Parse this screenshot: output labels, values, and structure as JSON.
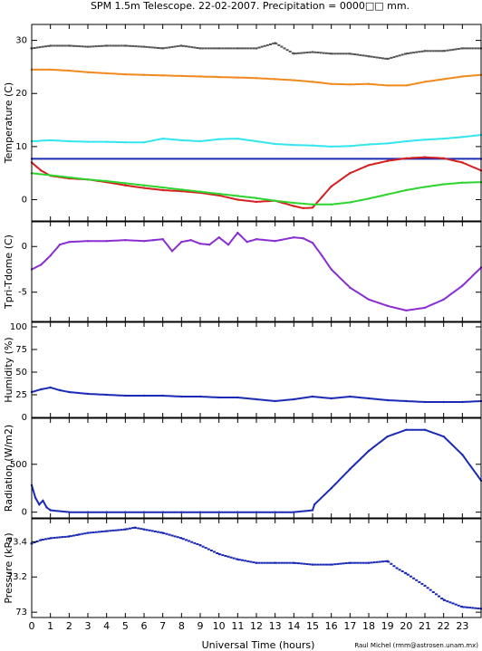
{
  "title": "SPM 1.5m Telescope. 22-02-2007. Precipitation = 0000□□ mm.",
  "credit": "Raul Michel (rmm@astrosen.unam.mx)",
  "chart_data": [
    {
      "type": "line",
      "ylabel": "Temperature (C)",
      "ylim": [
        -4,
        33
      ],
      "yticks": [
        0,
        10,
        20,
        30
      ],
      "series": [
        {
          "color": "#555555",
          "style": "dots",
          "x": [
            0,
            1,
            2,
            3,
            4,
            5,
            6,
            7,
            8,
            9,
            10,
            11,
            12,
            13,
            14,
            15,
            16,
            17,
            18,
            19,
            20,
            21,
            22,
            23,
            24
          ],
          "values": [
            28.5,
            29,
            29,
            28.8,
            29,
            29,
            28.8,
            28.5,
            29,
            28.5,
            28.5,
            28.5,
            28.5,
            29.5,
            27.5,
            27.8,
            27.5,
            27.5,
            27,
            26.5,
            27.5,
            28,
            28,
            28.5,
            28.5
          ]
        },
        {
          "color": "#f08a1e",
          "style": "line",
          "x": [
            0,
            1,
            2,
            3,
            4,
            5,
            6,
            7,
            8,
            9,
            10,
            11,
            12,
            13,
            14,
            15,
            16,
            17,
            18,
            19,
            20,
            21,
            22,
            23,
            24
          ],
          "values": [
            24.5,
            24.5,
            24.3,
            24,
            23.8,
            23.6,
            23.5,
            23.4,
            23.3,
            23.2,
            23.1,
            23,
            22.9,
            22.7,
            22.5,
            22.2,
            21.8,
            21.7,
            21.8,
            21.5,
            21.5,
            22.2,
            22.7,
            23.2,
            23.5
          ]
        },
        {
          "color": "#33e6ee",
          "style": "line",
          "x": [
            0,
            1,
            2,
            3,
            4,
            5,
            6,
            7,
            8,
            9,
            10,
            11,
            12,
            13,
            14,
            15,
            16,
            17,
            18,
            19,
            20,
            21,
            22,
            23,
            24
          ],
          "values": [
            11,
            11.2,
            11,
            10.9,
            10.9,
            10.8,
            10.8,
            11.5,
            11.2,
            11,
            11.4,
            11.5,
            11,
            10.5,
            10.3,
            10.2,
            10,
            10.1,
            10.4,
            10.6,
            11,
            11.3,
            11.5,
            11.8,
            12.2
          ]
        },
        {
          "color": "#1a2ab5",
          "style": "line",
          "x": [
            0,
            24
          ],
          "values": [
            7.7,
            7.7
          ]
        },
        {
          "color": "#d42020",
          "style": "line",
          "x": [
            0,
            0.5,
            1,
            2,
            3,
            4,
            5,
            6,
            7,
            8,
            9,
            10,
            11,
            12,
            13,
            14,
            14.5,
            15,
            15.5,
            16,
            17,
            18,
            19,
            20,
            21,
            22,
            23,
            24
          ],
          "values": [
            7,
            5.5,
            4.5,
            4,
            3.8,
            3.3,
            2.7,
            2.2,
            1.8,
            1.6,
            1.3,
            0.8,
            0,
            -0.4,
            -0.2,
            -1.2,
            -1.6,
            -1.5,
            0.5,
            2.5,
            5,
            6.5,
            7.3,
            7.8,
            8,
            7.8,
            7,
            5.5
          ]
        },
        {
          "color": "#2ed42e",
          "style": "line",
          "x": [
            0,
            1,
            2,
            3,
            4,
            5,
            6,
            7,
            8,
            9,
            10,
            11,
            12,
            13,
            14,
            15,
            16,
            17,
            18,
            19,
            20,
            21,
            22,
            23,
            24
          ],
          "values": [
            5,
            4.6,
            4.2,
            3.8,
            3.5,
            3.1,
            2.7,
            2.3,
            1.9,
            1.5,
            1.1,
            0.7,
            0.3,
            -0.2,
            -0.6,
            -0.9,
            -0.9,
            -0.5,
            0.2,
            1,
            1.8,
            2.4,
            2.9,
            3.2,
            3.3
          ]
        }
      ]
    },
    {
      "type": "line",
      "ylabel": "Tpri-Tdome (C)",
      "ylim": [
        -8.2,
        2.7
      ],
      "yticks": [
        -5,
        0
      ],
      "series": [
        {
          "color": "#8a2ed2",
          "style": "line",
          "x": [
            0,
            0.5,
            1,
            1.5,
            2,
            3,
            4,
            5,
            6,
            6.5,
            7,
            7.5,
            8,
            8.5,
            9,
            9.5,
            10,
            10.5,
            11,
            11.5,
            12,
            13,
            14,
            14.5,
            15,
            15.5,
            16,
            17,
            18,
            19,
            20,
            21,
            22,
            23,
            24
          ],
          "values": [
            -2.5,
            -2,
            -1,
            0.2,
            0.5,
            0.6,
            0.6,
            0.7,
            0.6,
            0.7,
            0.8,
            -0.5,
            0.5,
            0.7,
            0.3,
            0.2,
            1,
            0.2,
            1.5,
            0.5,
            0.8,
            0.6,
            1,
            0.9,
            0.4,
            -1,
            -2.5,
            -4.5,
            -5.8,
            -6.5,
            -7,
            -6.7,
            -5.8,
            -4.3,
            -2.3
          ]
        }
      ]
    },
    {
      "type": "line",
      "ylabel": "Humidity (%)",
      "ylim": [
        0,
        105
      ],
      "yticks": [
        0,
        25,
        50,
        75,
        100
      ],
      "series": [
        {
          "color": "#1a2ab5",
          "style": "line",
          "x": [
            0,
            0.5,
            1,
            1.5,
            2,
            3,
            4,
            5,
            6,
            7,
            8,
            9,
            10,
            11,
            12,
            13,
            14,
            15,
            16,
            17,
            18,
            19,
            20,
            21,
            22,
            23,
            24
          ],
          "values": [
            28,
            31,
            33,
            30,
            28,
            26,
            25,
            24,
            24,
            24,
            23,
            23,
            22,
            22,
            20,
            18,
            20,
            23,
            21,
            23,
            21,
            19,
            18,
            17,
            17,
            17,
            18
          ]
        }
      ]
    },
    {
      "type": "line",
      "ylabel": "Radiation (W/m2)",
      "ylim": [
        -60,
        980
      ],
      "yticks": [
        0,
        500
      ],
      "series": [
        {
          "color": "#1a2ab5",
          "style": "line",
          "x": [
            0,
            0.2,
            0.4,
            0.6,
            0.8,
            1,
            2,
            3,
            4,
            5,
            6,
            7,
            8,
            9,
            10,
            11,
            12,
            13,
            14,
            15,
            15.1,
            16,
            17,
            18,
            19,
            20,
            21,
            22,
            23,
            24
          ],
          "values": [
            280,
            150,
            80,
            120,
            50,
            20,
            0,
            0,
            0,
            0,
            0,
            0,
            0,
            0,
            0,
            0,
            0,
            0,
            0,
            20,
            80,
            250,
            450,
            640,
            790,
            860,
            860,
            790,
            600,
            330
          ]
        }
      ]
    },
    {
      "type": "scatter",
      "ylabel": "Pressure (kPa)",
      "ylim": [
        72.97,
        73.53
      ],
      "yticks": [
        73,
        73.2,
        73.4
      ],
      "series": [
        {
          "color": "#1a2ab5",
          "style": "dots",
          "x": [
            0,
            0.5,
            1,
            2,
            2.5,
            3,
            4,
            5,
            5.5,
            6,
            7,
            8,
            9,
            10,
            11,
            12,
            13,
            14,
            15,
            16,
            17,
            18,
            19,
            19.5,
            20,
            21,
            22,
            23,
            24
          ],
          "values": [
            73.39,
            73.41,
            73.42,
            73.43,
            73.44,
            73.45,
            73.46,
            73.47,
            73.48,
            73.47,
            73.45,
            73.42,
            73.38,
            73.33,
            73.3,
            73.28,
            73.28,
            73.28,
            73.27,
            73.27,
            73.28,
            73.28,
            73.29,
            73.25,
            73.22,
            73.15,
            73.07,
            73.03,
            73.02
          ]
        }
      ]
    }
  ],
  "x_axis": {
    "label": "Universal Time (hours)",
    "xlim": [
      0,
      24
    ],
    "ticks": [
      "0",
      "1",
      "2",
      "3",
      "4",
      "5",
      "6",
      "7",
      "8",
      "9",
      "10",
      "11",
      "12",
      "13",
      "14",
      "15",
      "16",
      "17",
      "18",
      "19",
      "20",
      "21",
      "22",
      "23"
    ]
  }
}
